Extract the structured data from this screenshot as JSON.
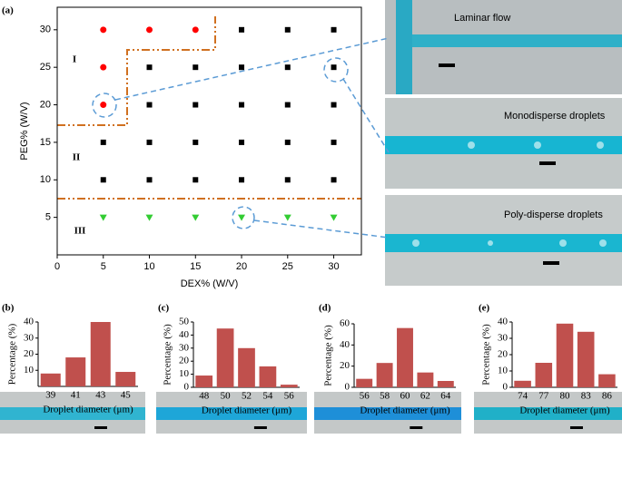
{
  "chart_data": [
    {
      "type": "scatter",
      "label": "(a)",
      "x_label": "DEX% (W/V)",
      "y_label": "PEG% (W/V)",
      "xlim": [
        0,
        33
      ],
      "ylim": [
        0,
        33
      ],
      "xticks": [
        0,
        5,
        10,
        15,
        20,
        25,
        30
      ],
      "yticks": [
        5,
        10,
        15,
        20,
        25,
        30
      ],
      "annotations": [
        "I",
        "II",
        "III"
      ],
      "images": [
        "Laminar flow",
        "Monodisperse droplets",
        "Poly-disperse droplets"
      ],
      "series": [
        {
          "color": "#ff0000",
          "marker": "circle",
          "x": [
            5,
            10,
            15,
            5,
            5
          ],
          "y": [
            30,
            30,
            30,
            25,
            20
          ]
        },
        {
          "color": "#000000",
          "marker": "square",
          "x": [
            20,
            25,
            30,
            10,
            15,
            20,
            25,
            30,
            10,
            15,
            20,
            25,
            30,
            5,
            10,
            15,
            20,
            25,
            30,
            5,
            10,
            15,
            20,
            25,
            30
          ],
          "y": [
            30,
            30,
            30,
            25,
            25,
            25,
            25,
            25,
            20,
            20,
            20,
            20,
            20,
            15,
            15,
            15,
            15,
            15,
            15,
            10,
            10,
            10,
            10,
            10,
            10
          ]
        },
        {
          "color": "#33cc33",
          "marker": "triangle",
          "x": [
            5,
            10,
            15,
            20,
            25,
            30
          ],
          "y": [
            5,
            5,
            5,
            5,
            5,
            5
          ]
        }
      ]
    },
    {
      "type": "bar",
      "label": "(b)",
      "x_label": "Droplet diameter (μm)",
      "y_label": "Percentage (%)",
      "color": "#c0504d",
      "categories": [
        "39",
        "41",
        "43",
        "45"
      ],
      "values": [
        8,
        18,
        40,
        9
      ],
      "ylim": [
        0,
        40
      ],
      "yticks": [
        10,
        20,
        30,
        40
      ]
    },
    {
      "type": "bar",
      "label": "(c)",
      "x_label": "Droplet diameter (μm)",
      "y_label": "Percentage (%)",
      "color": "#c0504d",
      "categories": [
        "48",
        "50",
        "52",
        "54",
        "56"
      ],
      "values": [
        9,
        45,
        30,
        16,
        2
      ],
      "ylim": [
        0,
        50
      ],
      "yticks": [
        0,
        10,
        20,
        30,
        40,
        50
      ]
    },
    {
      "type": "bar",
      "label": "(d)",
      "x_label": "Droplet diameter (μm)",
      "y_label": "Percentage (%)",
      "color": "#c0504d",
      "categories": [
        "56",
        "58",
        "60",
        "62",
        "64"
      ],
      "values": [
        8,
        23,
        56,
        14,
        6
      ],
      "ylim": [
        0,
        60
      ],
      "yticks": [
        0,
        20,
        40,
        60
      ]
    },
    {
      "type": "bar",
      "label": "(e)",
      "x_label": "Droplet diameter (μm)",
      "y_label": "Percentage (%)",
      "color": "#c0504d",
      "categories": [
        "74",
        "77",
        "80",
        "83",
        "86"
      ],
      "values": [
        4,
        15,
        39,
        34,
        8
      ],
      "ylim": [
        0,
        40
      ],
      "yticks": [
        0,
        10,
        20,
        30,
        40
      ]
    }
  ]
}
